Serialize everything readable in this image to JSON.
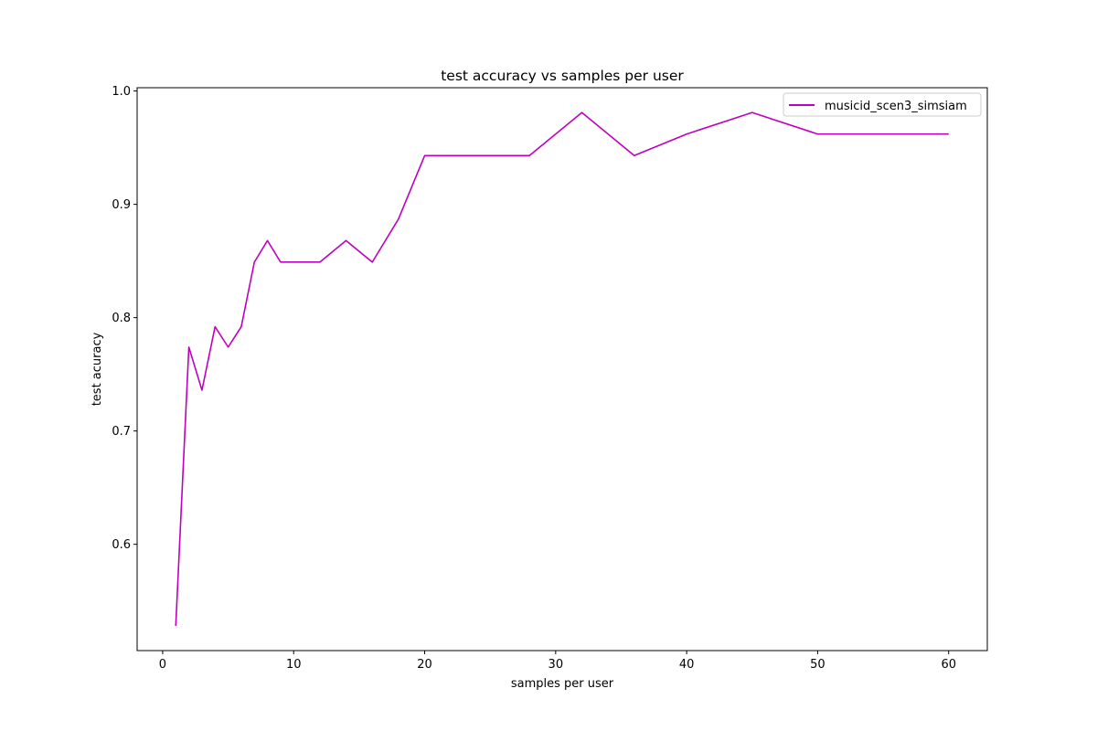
{
  "chart_data": {
    "type": "line",
    "title": "test accuracy vs samples per user",
    "xlabel": "samples per user",
    "ylabel": "test acuracy",
    "xlim": [
      -1.95,
      62.95
    ],
    "ylim": [
      0.5062,
      1.0029
    ],
    "xticks": [
      0,
      10,
      20,
      30,
      40,
      50,
      60
    ],
    "yticks": [
      0.6,
      0.7,
      0.8,
      0.9,
      1.0
    ],
    "xtick_labels": [
      "0",
      "10",
      "20",
      "30",
      "40",
      "50",
      "60"
    ],
    "ytick_labels": [
      "0.6",
      "0.7",
      "0.8",
      "0.9",
      "1.0"
    ],
    "grid": false,
    "legend_position": "top-right",
    "series": [
      {
        "name": "musicid_scen3_simsiam",
        "color": "#bf00bf",
        "x": [
          1,
          2,
          3,
          4,
          5,
          6,
          7,
          8,
          9,
          10,
          12,
          14,
          16,
          18,
          20,
          24,
          28,
          32,
          36,
          40,
          45,
          50,
          55,
          60
        ],
        "y": [
          0.528,
          0.774,
          0.736,
          0.792,
          0.774,
          0.792,
          0.849,
          0.868,
          0.849,
          0.849,
          0.849,
          0.868,
          0.849,
          0.887,
          0.943,
          0.943,
          0.943,
          0.981,
          0.943,
          0.962,
          0.981,
          0.962,
          0.962,
          0.962
        ]
      }
    ]
  }
}
